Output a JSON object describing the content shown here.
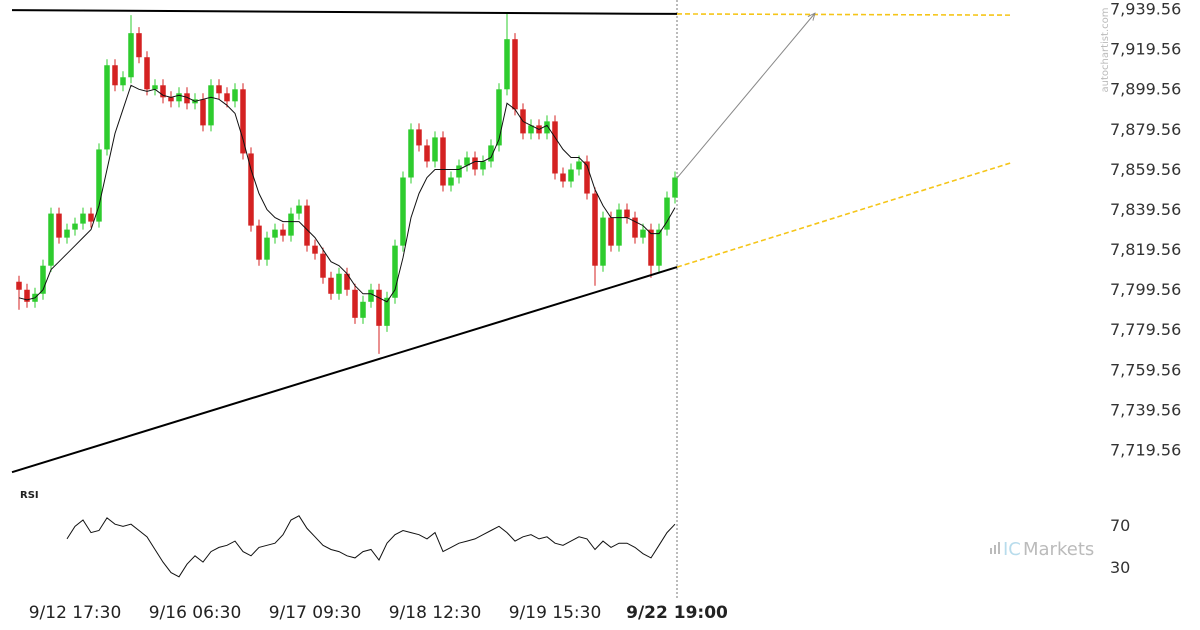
{
  "chart_data": {
    "type": "candlestick",
    "up_color": "#2ecc2e",
    "down_color": "#d42222",
    "xlim": [
      -2.375,
      134.5
    ],
    "xticks": [
      {
        "value": 7,
        "label": "9/12 17:30"
      },
      {
        "value": 22,
        "label": "9/16 06:30"
      },
      {
        "value": 37,
        "label": "9/17 09:30"
      },
      {
        "value": 52,
        "label": "9/18 12:30"
      },
      {
        "value": 67,
        "label": "9/19 15:30"
      },
      {
        "value": 82.25,
        "label": "9/22 19:00"
      }
    ],
    "ylim": [
      7705.09,
      7944.55
    ],
    "yticks": [
      {
        "value": 7939.56,
        "label": "7,939.56"
      },
      {
        "value": 7919.56,
        "label": "7,919.56"
      },
      {
        "value": 7899.56,
        "label": "7,899.56"
      },
      {
        "value": 7879.56,
        "label": "7,879.56"
      },
      {
        "value": 7859.56,
        "label": "7,859.56"
      },
      {
        "value": 7839.56,
        "label": "7,839.56"
      },
      {
        "value": 7819.56,
        "label": "7,819.56"
      },
      {
        "value": 7799.56,
        "label": "7,799.56"
      },
      {
        "value": 7779.56,
        "label": "7,779.56"
      },
      {
        "value": 7759.56,
        "label": "7,759.56"
      },
      {
        "value": 7739.56,
        "label": "7,739.56"
      },
      {
        "value": 7719.56,
        "label": "7,719.56"
      }
    ],
    "open": [
      7804,
      7800,
      7794,
      7798,
      7812,
      7838,
      7826,
      7830,
      7833,
      7838,
      7834,
      7870,
      7912,
      7902,
      7906,
      7928,
      7916,
      7900,
      7902,
      7896,
      7894,
      7898,
      7893,
      7895,
      7882,
      7902,
      7898,
      7894,
      7900,
      7868,
      7832,
      7815,
      7826,
      7830,
      7827,
      7838,
      7842,
      7822,
      7818,
      7806,
      7798,
      7808,
      7800,
      7786,
      7794,
      7800,
      7782,
      7796,
      7822,
      7856,
      7880,
      7872,
      7864,
      7876,
      7852,
      7856,
      7862,
      7866,
      7860,
      7864,
      7872,
      7900,
      7925,
      7890,
      7878,
      7882,
      7878,
      7884,
      7858,
      7854,
      7860,
      7864,
      7848,
      7812,
      7836,
      7822,
      7840,
      7836,
      7826,
      7830,
      7812,
      7830,
      7846
    ],
    "high": [
      7807,
      7803,
      7801,
      7815,
      7841,
      7841,
      7833,
      7836,
      7841,
      7841,
      7873,
      7915,
      7915,
      7909,
      7937,
      7931,
      7919,
      7905,
      7905,
      7899,
      7901,
      7901,
      7898,
      7898,
      7905,
      7905,
      7901,
      7903,
      7903,
      7871,
      7835,
      7829,
      7833,
      7833,
      7841,
      7845,
      7845,
      7825,
      7821,
      7809,
      7811,
      7811,
      7803,
      7797,
      7803,
      7803,
      7799,
      7825,
      7859,
      7883,
      7883,
      7875,
      7879,
      7879,
      7859,
      7865,
      7869,
      7869,
      7867,
      7875,
      7903,
      7938,
      7928,
      7893,
      7885,
      7885,
      7887,
      7887,
      7861,
      7863,
      7867,
      7867,
      7851,
      7839,
      7839,
      7843,
      7843,
      7839,
      7833,
      7833,
      7833,
      7849,
      7859
    ],
    "low": [
      7790,
      7791,
      7791,
      7795,
      7809,
      7823,
      7823,
      7827,
      7830,
      7831,
      7831,
      7867,
      7899,
      7899,
      7903,
      7913,
      7897,
      7897,
      7893,
      7891,
      7891,
      7890,
      7890,
      7879,
      7879,
      7895,
      7891,
      7891,
      7865,
      7829,
      7812,
      7812,
      7823,
      7824,
      7824,
      7835,
      7819,
      7815,
      7803,
      7795,
      7795,
      7797,
      7783,
      7783,
      7791,
      7768,
      7779,
      7793,
      7819,
      7853,
      7869,
      7861,
      7861,
      7849,
      7849,
      7853,
      7859,
      7857,
      7857,
      7861,
      7869,
      7897,
      7887,
      7875,
      7875,
      7875,
      7875,
      7855,
      7851,
      7851,
      7857,
      7845,
      7802,
      7809,
      7819,
      7819,
      7833,
      7823,
      7823,
      7806,
      7809,
      7827,
      7843
    ],
    "close": [
      7800,
      7794,
      7798,
      7812,
      7838,
      7826,
      7830,
      7833,
      7838,
      7834,
      7870,
      7912,
      7902,
      7906,
      7928,
      7916,
      7900,
      7902,
      7896,
      7894,
      7898,
      7893,
      7895,
      7882,
      7902,
      7898,
      7894,
      7900,
      7868,
      7832,
      7815,
      7826,
      7830,
      7827,
      7838,
      7842,
      7822,
      7818,
      7806,
      7798,
      7808,
      7800,
      7786,
      7794,
      7800,
      7782,
      7796,
      7822,
      7856,
      7880,
      7872,
      7864,
      7876,
      7852,
      7856,
      7862,
      7866,
      7860,
      7864,
      7872,
      7900,
      7925,
      7890,
      7878,
      7882,
      7878,
      7884,
      7858,
      7854,
      7860,
      7864,
      7848,
      7812,
      7836,
      7822,
      7840,
      7836,
      7826,
      7830,
      7812,
      7830,
      7846,
      7856
    ],
    "moving_average": [
      7796,
      7795,
      7796,
      7800,
      7810,
      7814,
      7818,
      7822,
      7826,
      7830,
      7842,
      7860,
      7878,
      7890,
      7902,
      7900,
      7899,
      7900,
      7897,
      7896,
      7897,
      7896,
      7894,
      7895,
      7896,
      7895,
      7892,
      7888,
      7875,
      7860,
      7848,
      7840,
      7836,
      7834,
      7834,
      7834,
      7830,
      7826,
      7820,
      7814,
      7812,
      7808,
      7802,
      7798,
      7798,
      7796,
      7794,
      7800,
      7816,
      7836,
      7848,
      7856,
      7860,
      7860,
      7860,
      7860,
      7862,
      7864,
      7864,
      7866,
      7875,
      7893,
      7890,
      7884,
      7882,
      7880,
      7882,
      7876,
      7870,
      7866,
      7866,
      7862,
      7850,
      7842,
      7836,
      7836,
      7836,
      7834,
      7832,
      7828,
      7828,
      7834,
      7841
    ],
    "trend_lines": [
      {
        "x": [
          -0.875,
          82.25
        ],
        "y": [
          7939.5,
          7937.6
        ],
        "style": "solid",
        "color": "#000000"
      },
      {
        "x": [
          82.25,
          123.9
        ],
        "y": [
          7937.6,
          7937.0
        ],
        "style": "dashed",
        "color": "#f5c518"
      },
      {
        "x": [
          -0.875,
          82.25
        ],
        "y": [
          7709.0,
          7811.3
        ],
        "style": "solid",
        "color": "#000000"
      },
      {
        "x": [
          82.25,
          123.9
        ],
        "y": [
          7811.3,
          7863.2
        ],
        "style": "dashed",
        "color": "#f5c518"
      },
      {
        "x": [
          82.25,
          99.5
        ],
        "y": [
          7855.7,
          7938.0
        ],
        "style": "arrow",
        "color": "#888888"
      }
    ],
    "rsi": {
      "label": "RSI",
      "ylim": [
        0,
        114
      ],
      "yticks": [
        70,
        30
      ],
      "values": [
        null,
        null,
        null,
        null,
        null,
        null,
        58,
        70,
        76,
        64,
        66,
        78,
        72,
        70,
        72,
        66,
        60,
        48,
        36,
        26,
        22,
        34,
        42,
        36,
        46,
        50,
        52,
        56,
        46,
        42,
        50,
        52,
        54,
        62,
        76,
        80,
        68,
        60,
        52,
        48,
        46,
        42,
        40,
        46,
        48,
        38,
        54,
        62,
        66,
        64,
        62,
        58,
        64,
        46,
        50,
        54,
        56,
        58,
        62,
        66,
        70,
        64,
        56,
        60,
        62,
        58,
        60,
        54,
        52,
        56,
        60,
        58,
        48,
        56,
        50,
        54,
        54,
        50,
        44,
        40,
        52,
        64,
        72
      ]
    },
    "watermark": "autochartist.com",
    "logo": {
      "prefix": "IC",
      "name": "Markets"
    }
  }
}
